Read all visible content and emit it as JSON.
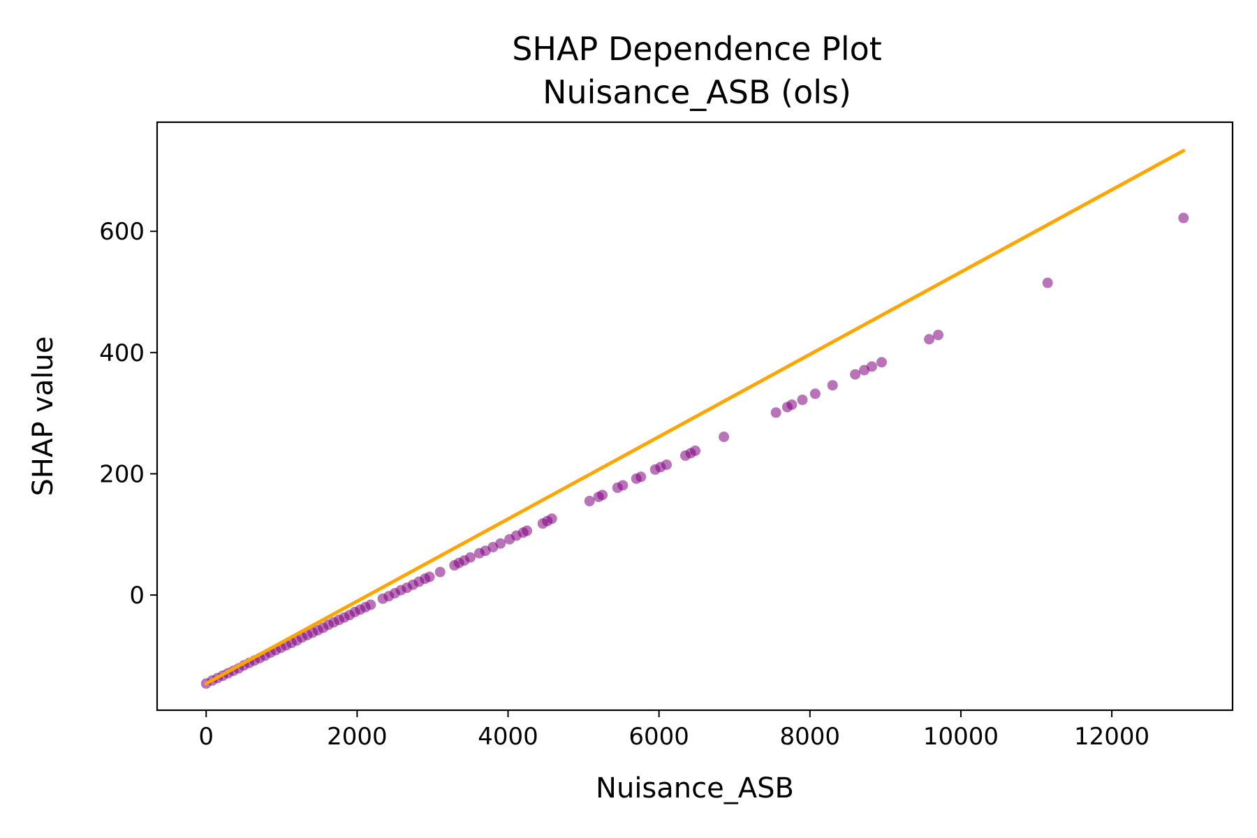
{
  "chart_data": {
    "type": "scatter",
    "title": "SHAP Dependence Plot",
    "subtitle": "Nuisance_ASB (ols)",
    "xlabel": "Nuisance_ASB",
    "ylabel": "SHAP value",
    "xlim": [
      -650,
      13600
    ],
    "ylim": [
      -190,
      780
    ],
    "x_ticks": [
      0,
      2000,
      4000,
      6000,
      8000,
      10000,
      12000
    ],
    "y_ticks": [
      0,
      200,
      400,
      600
    ],
    "x_tick_labels": [
      "0",
      "2000",
      "4000",
      "6000",
      "8000",
      "10000",
      "12000"
    ],
    "y_tick_labels": [
      "0",
      "200",
      "400",
      "600"
    ],
    "grid": false,
    "legend": "none",
    "colors": {
      "points": "#800080",
      "fit_line": "#FFA500"
    },
    "series": [
      {
        "type": "scatter",
        "x": [
          0,
          80,
          150,
          220,
          290,
          360,
          430,
          500,
          570,
          640,
          710,
          780,
          850,
          920,
          990,
          1060,
          1130,
          1200,
          1270,
          1340,
          1410,
          1480,
          1550,
          1620,
          1690,
          1760,
          1830,
          1900,
          1970,
          2040,
          2110,
          2180,
          2340,
          2420,
          2500,
          2580,
          2660,
          2740,
          2820,
          2900,
          2960,
          3100,
          3290,
          3350,
          3420,
          3500,
          3620,
          3700,
          3800,
          3900,
          4020,
          4110,
          4200,
          4250,
          4460,
          4520,
          4580,
          5080,
          5200,
          5250,
          5450,
          5520,
          5700,
          5760,
          5950,
          6020,
          6100,
          6350,
          6420,
          6480,
          6860,
          7550,
          7700,
          7760,
          7900,
          8070,
          8300,
          8600,
          8720,
          8820,
          8950,
          9580,
          9700,
          11150,
          12950
        ],
        "y": [
          -146,
          -141,
          -137,
          -133,
          -129,
          -125,
          -121,
          -116,
          -112,
          -108,
          -104,
          -100,
          -95,
          -91,
          -87,
          -83,
          -79,
          -75,
          -70,
          -66,
          -62,
          -58,
          -54,
          -49,
          -45,
          -41,
          -37,
          -33,
          -28,
          -24,
          -20,
          -16,
          -6,
          -2,
          3,
          8,
          12,
          17,
          22,
          27,
          30,
          38,
          49,
          53,
          57,
          62,
          69,
          73,
          79,
          85,
          92,
          98,
          103,
          106,
          118,
          122,
          126,
          155,
          162,
          165,
          177,
          181,
          192,
          195,
          207,
          211,
          215,
          230,
          234,
          238,
          261,
          301,
          310,
          314,
          322,
          332,
          346,
          364,
          371,
          377,
          384,
          422,
          429,
          515,
          622
        ]
      }
    ],
    "fit_line": {
      "x": [
        0,
        12950
      ],
      "y": [
        -146,
        733
      ]
    }
  }
}
